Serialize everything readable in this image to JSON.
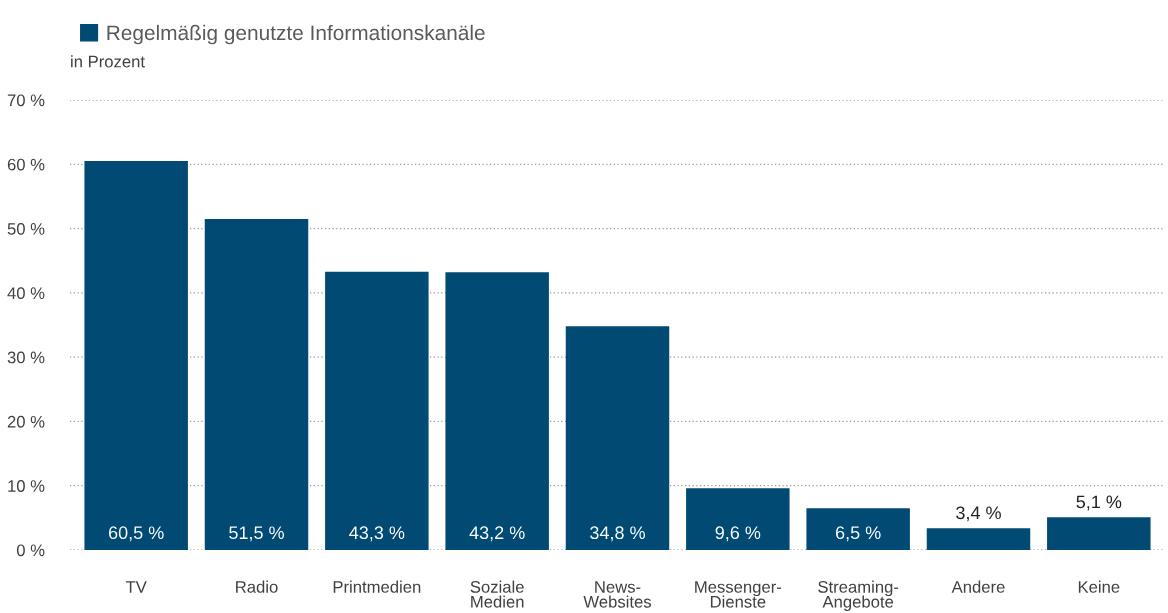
{
  "chart_data": {
    "type": "bar",
    "ylabel": "in Prozent",
    "categories": [
      "TV",
      "Radio",
      "Printmedien",
      "Soziale\nMedien",
      "News-\nWebsites",
      "Messenger-\nDienste",
      "Streaming-\nAngebote",
      "Andere",
      "Keine"
    ],
    "series": [
      {
        "name": "Regelmäßig genutzte Informationskanäle",
        "color": "#004a74",
        "values": [
          60.5,
          51.5,
          43.3,
          43.2,
          34.8,
          9.6,
          6.5,
          3.4,
          5.1
        ],
        "value_labels": [
          "60,5 %",
          "51,5 %",
          "43,3 %",
          "43,2 %",
          "34,8 %",
          "9,6 %",
          "6,5 %",
          "3,4 %",
          "5,1 %"
        ]
      }
    ],
    "ylim": [
      0,
      70
    ],
    "yticks": [
      {
        "value": 0,
        "label": "0 %"
      },
      {
        "value": 10,
        "label": "10 %"
      },
      {
        "value": 20,
        "label": "20 %"
      },
      {
        "value": 30,
        "label": "30 %"
      },
      {
        "value": 40,
        "label": "40 %"
      },
      {
        "value": 50,
        "label": "50 %"
      },
      {
        "value": 60,
        "label": "60 %"
      },
      {
        "value": 70,
        "label": "70 %"
      }
    ],
    "grid": "y",
    "legend": "top left"
  }
}
